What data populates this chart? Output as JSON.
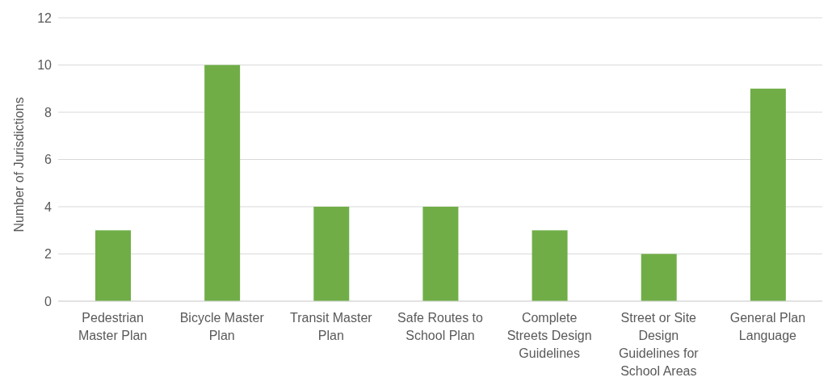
{
  "chart_data": {
    "type": "bar",
    "ylabel": "Number of Jurisdictions",
    "categories": [
      "Pedestrian Master Plan",
      "Bicycle Master Plan",
      "Transit Master Plan",
      "Safe Routes to School Plan",
      "Complete Streets Design Guidelines",
      "Street or Site Design Guidelines for School Areas",
      "General Plan Language"
    ],
    "values": [
      3,
      10,
      4,
      4,
      3,
      2,
      9
    ],
    "color": "#70ad47",
    "ylim": [
      0,
      12
    ],
    "yticks": [
      0,
      2,
      4,
      6,
      8,
      10,
      12
    ],
    "grid": "y"
  }
}
